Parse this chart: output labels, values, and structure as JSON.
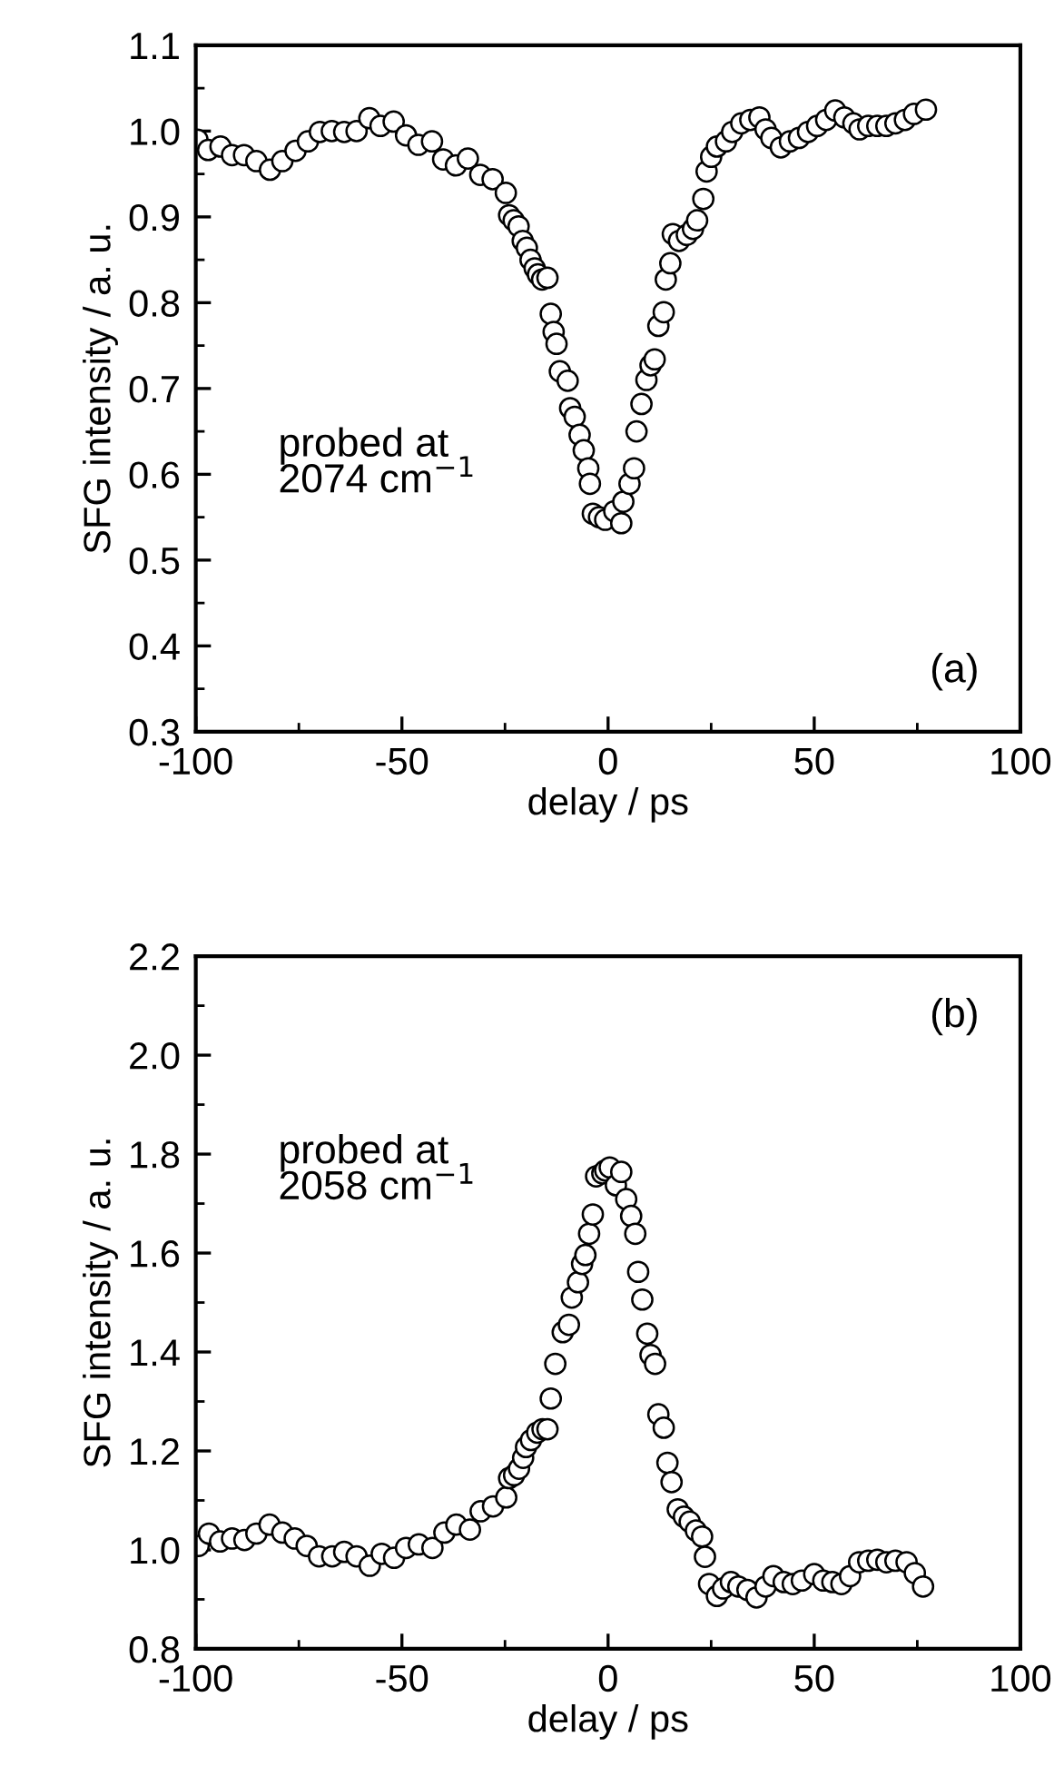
{
  "chart_data": [
    {
      "type": "scatter",
      "xlabel": "delay / ps",
      "ylabel": "SFG intensity / a. u.",
      "annotations": [
        "probed at\n2074 cm$^{−1}$",
        "(a)"
      ],
      "marker": "circle",
      "grid": false,
      "legend": false,
      "xlim": [
        -100,
        100
      ],
      "xticks": [
        -100,
        -50,
        0,
        50,
        100
      ],
      "ylim": [
        0.3,
        1.1
      ],
      "yticks": [
        {
          "value": 0.3,
          "label": "0.3"
        },
        {
          "value": 0.4,
          "label": "0.4"
        },
        {
          "value": 0.5,
          "label": "0.5"
        },
        {
          "value": 0.6,
          "label": "0.6"
        },
        {
          "value": 0.7,
          "label": "0.7"
        },
        {
          "value": 0.8,
          "label": "0.8"
        },
        {
          "value": 0.9,
          "label": "0.9"
        },
        {
          "value": 1,
          "label": "1.0"
        },
        {
          "value": 1.1,
          "label": "1.1"
        }
      ],
      "series": [
        {
          "color": "#000000",
          "x": [
            -99.6,
            -97,
            -94,
            -91.2,
            -88.3,
            -85.3,
            -82,
            -79,
            -75.8,
            -72.8,
            -69.9,
            -67,
            -64,
            -61,
            -57.9,
            -55.2,
            -52,
            -49,
            -46,
            -42.7,
            -40,
            -36.9,
            -34,
            -31,
            -28,
            -24.8,
            -24,
            -22.9,
            -21.7,
            -20.7,
            -19.7,
            -18.8,
            -17.8,
            -17,
            -16,
            -14.7,
            -13.9,
            -13.2,
            -12.5,
            -11.7,
            -9.8,
            -9.2,
            -8.1,
            -6.9,
            -5.9,
            -4.8,
            -4.4,
            -3.7,
            -2.2,
            -0.7,
            1.5,
            3.2,
            3.7,
            5.2,
            6.3,
            6.9,
            8.1,
            9.3,
            10.3,
            11.3,
            12.2,
            13.5,
            14,
            15.1,
            15.7,
            17.2,
            19.1,
            20.6,
            21.6,
            23.1,
            23.9,
            25,
            26.4,
            28.6,
            30.1,
            32.3,
            34.5,
            36.7,
            38.2,
            39.6,
            41.9,
            44.1,
            46.3,
            48.5,
            50.7,
            52.9,
            55.1,
            57.3,
            59.5,
            61,
            63.1,
            65.3,
            67.5,
            69.7,
            72,
            74.2,
            77.1
          ],
          "values": [
            0.99,
            0.978,
            0.982,
            0.972,
            0.972,
            0.965,
            0.955,
            0.965,
            0.977,
            0.988,
            0.999,
            1.0,
            0.999,
            1.0,
            1.015,
            1.006,
            1.011,
            0.995,
            0.984,
            0.988,
            0.967,
            0.96,
            0.968,
            0.949,
            0.944,
            0.928,
            0.902,
            0.896,
            0.889,
            0.872,
            0.864,
            0.85,
            0.84,
            0.833,
            0.827,
            0.829,
            0.787,
            0.766,
            0.752,
            0.72,
            0.709,
            0.677,
            0.667,
            0.646,
            0.628,
            0.607,
            0.589,
            0.554,
            0.55,
            0.547,
            0.557,
            0.543,
            0.568,
            0.589,
            0.607,
            0.65,
            0.682,
            0.71,
            0.727,
            0.734,
            0.773,
            0.789,
            0.827,
            0.846,
            0.88,
            0.872,
            0.879,
            0.886,
            0.896,
            0.921,
            0.953,
            0.97,
            0.982,
            0.988,
            0.999,
            1.009,
            1.013,
            1.016,
            1.002,
            0.992,
            0.981,
            0.988,
            0.992,
            0.999,
            1.006,
            1.013,
            1.024,
            1.016,
            1.009,
            1.002,
            1.006,
            1.006,
            1.006,
            1.009,
            1.013,
            1.02,
            1.025
          ]
        }
      ]
    },
    {
      "type": "scatter",
      "xlabel": "delay / ps",
      "ylabel": "SFG intensity / a. u.",
      "annotations": [
        "probed at\n2058 cm$^{−1}$",
        "(b)"
      ],
      "marker": "circle",
      "grid": false,
      "legend": false,
      "xlim": [
        -100,
        100
      ],
      "xticks": [
        -100,
        -50,
        0,
        50,
        100
      ],
      "ylim": [
        0.8,
        2.2
      ],
      "yticks": [
        {
          "value": 0.8,
          "label": "0.8"
        },
        {
          "value": 1,
          "label": "1.0"
        },
        {
          "value": 1.2,
          "label": "1.2"
        },
        {
          "value": 1.4,
          "label": "1.4"
        },
        {
          "value": 1.6,
          "label": "1.6"
        },
        {
          "value": 1.8,
          "label": "1.8"
        },
        {
          "value": 2,
          "label": "2.0"
        },
        {
          "value": 2.2,
          "label": "2.2"
        }
      ],
      "series": [
        {
          "color": "#000000",
          "x": [
            -99.3,
            -96.8,
            -94.1,
            -91.2,
            -88.2,
            -85.3,
            -82.1,
            -79,
            -76,
            -73.1,
            -70.1,
            -66.9,
            -64,
            -61,
            -57.8,
            -54.9,
            -51.9,
            -49,
            -45.9,
            -42.6,
            -39.7,
            -36.8,
            -33.5,
            -30.9,
            -27.9,
            -24.7,
            -24,
            -22.8,
            -21.6,
            -20.6,
            -19.9,
            -18.7,
            -17.2,
            -15.9,
            -14.7,
            -13.9,
            -12.8,
            -11,
            -9.5,
            -8.8,
            -7.3,
            -6.3,
            -5.5,
            -4.6,
            -3.7,
            -2.9,
            -1.4,
            -0.7,
            0.4,
            1.9,
            3.2,
            4.4,
            5.6,
            6.6,
            7.3,
            8.3,
            9.5,
            10.3,
            11.4,
            12.2,
            13.5,
            14.4,
            15.4,
            16.9,
            18.4,
            19.8,
            21.3,
            22.8,
            23.5,
            24.5,
            26.4,
            27.9,
            29.8,
            31.6,
            33.8,
            36,
            38.2,
            40.1,
            42.6,
            44.8,
            47,
            50,
            52.2,
            54.4,
            56.6,
            58.7,
            60.9,
            63.1,
            65.3,
            67.5,
            69.7,
            72.4,
            74.4,
            76.4
          ],
          "values": [
            1.008,
            1.033,
            1.017,
            1.023,
            1.02,
            1.033,
            1.051,
            1.035,
            1.023,
            1.008,
            0.987,
            0.987,
            0.996,
            0.987,
            0.968,
            0.992,
            0.984,
            1.004,
            1.011,
            1.004,
            1.035,
            1.051,
            1.041,
            1.078,
            1.088,
            1.106,
            1.145,
            1.151,
            1.164,
            1.186,
            1.208,
            1.222,
            1.237,
            1.244,
            1.244,
            1.306,
            1.376,
            1.44,
            1.455,
            1.51,
            1.541,
            1.578,
            1.596,
            1.639,
            1.678,
            1.755,
            1.761,
            1.767,
            1.773,
            1.737,
            1.764,
            1.709,
            1.675,
            1.639,
            1.562,
            1.506,
            1.437,
            1.394,
            1.376,
            1.274,
            1.247,
            1.176,
            1.137,
            1.082,
            1.067,
            1.057,
            1.039,
            1.027,
            0.986,
            0.931,
            0.907,
            0.922,
            0.935,
            0.926,
            0.919,
            0.904,
            0.926,
            0.947,
            0.935,
            0.931,
            0.938,
            0.951,
            0.938,
            0.935,
            0.931,
            0.947,
            0.975,
            0.978,
            0.98,
            0.975,
            0.978,
            0.975,
            0.953,
            0.926
          ]
        }
      ]
    }
  ]
}
